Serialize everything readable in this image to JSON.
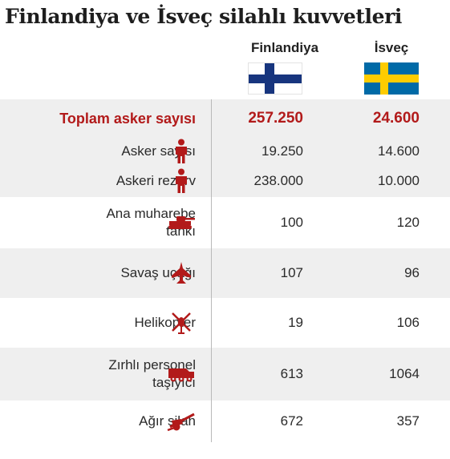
{
  "title": "Finlandiya ve İsveç silahlı kuvvetleri",
  "countries": {
    "finland": "Finlandiya",
    "sweden": "İsveç"
  },
  "colors": {
    "accent_red": "#b21a1a",
    "finland_blue": "#17357e",
    "sweden_blue": "#006aa7",
    "sweden_yellow": "#fecc00"
  },
  "rows": [
    {
      "label": "Toplam asker sayısı",
      "icon": "",
      "finland": "257.250",
      "sweden": "24.600"
    },
    {
      "label": "Asker sayısı",
      "icon": "soldier-icon",
      "finland": "19.250",
      "sweden": "14.600"
    },
    {
      "label": "Askeri rezerv",
      "icon": "soldier-icon",
      "finland": "238.000",
      "sweden": "10.000"
    },
    {
      "label": "Ana muharebe\ntankı",
      "icon": "tank-icon",
      "finland": "100",
      "sweden": "120"
    },
    {
      "label": "Savaş uçağı",
      "icon": "fighter-jet-icon",
      "finland": "107",
      "sweden": "96"
    },
    {
      "label": "Helikopter",
      "icon": "helicopter-icon",
      "finland": "19",
      "sweden": "106"
    },
    {
      "label": "Zırhlı personel\ntaşıyıcı",
      "icon": "armored-carrier-icon",
      "finland": "613",
      "sweden": "1064"
    },
    {
      "label": "Ağır silah",
      "icon": "artillery-icon",
      "finland": "672",
      "sweden": "357"
    }
  ]
}
